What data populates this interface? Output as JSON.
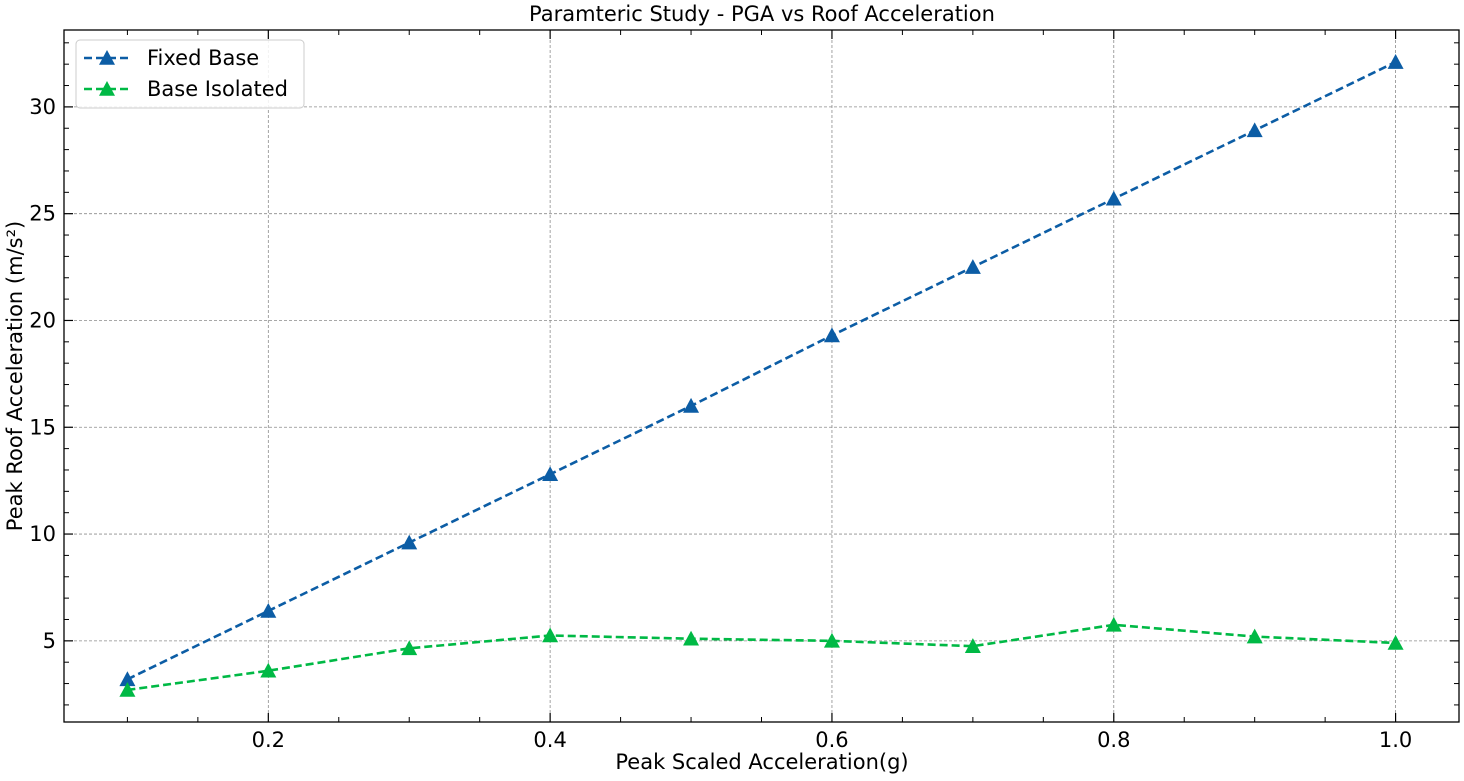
{
  "chart_data": {
    "type": "line",
    "title": "Paramteric Study - PGA vs Roof Acceleration",
    "xlabel": "Peak Scaled Acceleration(g)",
    "ylabel": "Peak Roof Acceleration (m/s²)",
    "xlim": [
      0.055,
      1.045
    ],
    "ylim": [
      1.2,
      33.6
    ],
    "xticks": [
      0.2,
      0.4,
      0.6,
      0.8,
      1.0
    ],
    "xtick_labels": [
      "0.2",
      "0.4",
      "0.6",
      "0.8",
      "1.0"
    ],
    "yticks": [
      5,
      10,
      15,
      20,
      25,
      30
    ],
    "ytick_labels": [
      "5",
      "10",
      "15",
      "20",
      "25",
      "30"
    ],
    "grid": true,
    "legend_position": "top-left",
    "x": [
      0.1,
      0.2,
      0.3,
      0.4,
      0.5,
      0.6,
      0.7,
      0.8,
      0.9,
      1.0
    ],
    "series": [
      {
        "name": "Fixed Base",
        "color": "#0c5da5",
        "line_style": "dashed",
        "marker": "triangle",
        "values": [
          3.2,
          6.4,
          9.6,
          12.8,
          16.0,
          19.3,
          22.5,
          25.7,
          28.9,
          32.1
        ]
      },
      {
        "name": "Base Isolated",
        "color": "#00b945",
        "line_style": "dashed",
        "marker": "triangle",
        "values": [
          2.7,
          3.6,
          4.65,
          5.25,
          5.1,
          5.0,
          4.75,
          5.75,
          5.2,
          4.9
        ]
      }
    ]
  }
}
